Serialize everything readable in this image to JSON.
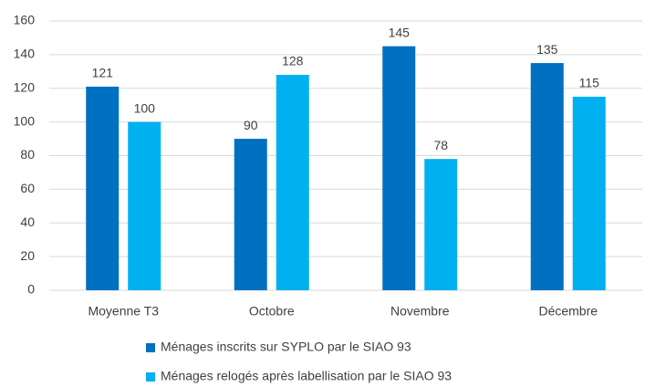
{
  "chart_data": {
    "type": "bar",
    "categories": [
      "Moyenne T3",
      "Octobre",
      "Novembre",
      "Décembre"
    ],
    "series": [
      {
        "name": "Ménages inscrits sur SYPLO par le SIAO 93",
        "color": "#0070c0",
        "values": [
          121,
          90,
          145,
          135
        ]
      },
      {
        "name": "Ménages relogés après labellisation par le SIAO 93",
        "color": "#00b0f0",
        "values": [
          100,
          128,
          78,
          115
        ]
      }
    ],
    "ylim": [
      0,
      160
    ],
    "yticks": [
      0,
      20,
      40,
      60,
      80,
      100,
      120,
      140,
      160
    ],
    "grid": true,
    "legend": "bottom"
  }
}
